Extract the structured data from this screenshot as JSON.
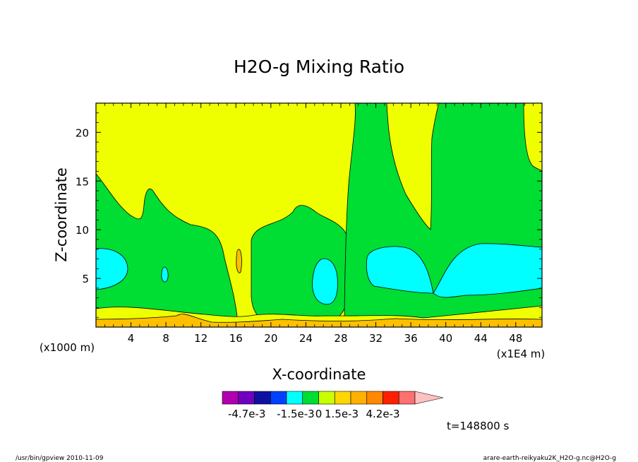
{
  "chart_data": {
    "type": "heatmap",
    "title": "H2O-g Mixing Ratio",
    "xlabel": "X-coordinate",
    "ylabel": "Z-coordinate",
    "x_unit_left": "(x1000 m)",
    "x_unit_right": "(x1E4 m)",
    "xlim": [
      0,
      51
    ],
    "ylim": [
      0,
      23
    ],
    "xticks": [
      4,
      8,
      12,
      16,
      20,
      24,
      28,
      32,
      36,
      40,
      44,
      48
    ],
    "yticks": [
      5,
      10,
      15,
      20
    ],
    "grid": false,
    "levels_colors": {
      "bg": "#f0ff00",
      "near_surface": "#ffd700",
      "surface": "#ffc000",
      "mid": "#00dd33",
      "core": "#00ffff"
    },
    "colorbar": {
      "colors": [
        "#b000b0",
        "#7000c0",
        "#1010a0",
        "#0040ff",
        "#00ffff",
        "#00dd33",
        "#c8ff00",
        "#ffd700",
        "#ffb000",
        "#ff8800",
        "#ff2000",
        "#ff7070"
      ],
      "extend_color": "#ffc0c0",
      "labels": [
        "-4.7e-3",
        "-1.5e-3",
        "0",
        "1.5e-3",
        "4.2e-3"
      ],
      "label_values": [
        -0.0047,
        -0.0015,
        0,
        0.0015,
        0.0042
      ],
      "vmin": -0.0063,
      "vmax": 0.0063
    },
    "time_label": "t=148800 s"
  },
  "footer": {
    "left": "/usr/bin/gpview   2010-11-09",
    "right": "arare-earth-reikyaku2K_H2O-g.nc@H2O-g"
  }
}
